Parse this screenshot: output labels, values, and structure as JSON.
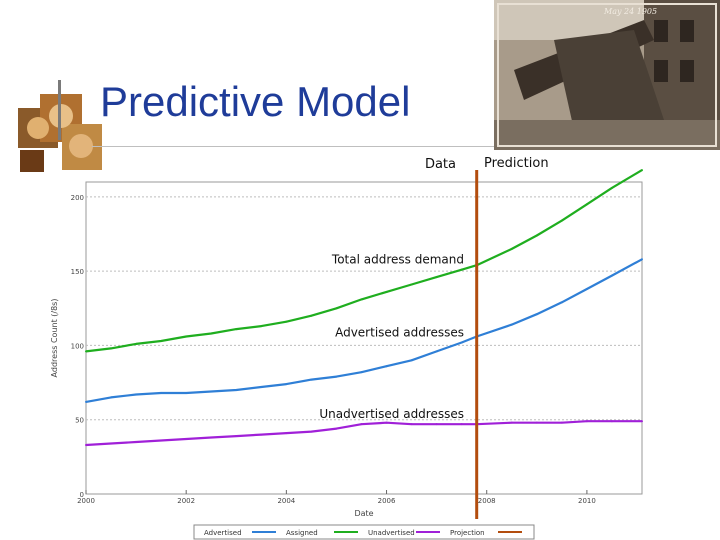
{
  "slide": {
    "title": "Predictive Model",
    "photo_caption": "May 24 1905"
  },
  "colors": {
    "title": "#1f3c99",
    "advertised": "#2f7fd6",
    "assigned": "#1fae1f",
    "unadvertised": "#a020d8",
    "projection": "#b34d0e"
  },
  "chart_data": {
    "type": "line",
    "xlabel": "Date",
    "ylabel": "Address Count (/8s)",
    "xlim": [
      2000,
      2011.1
    ],
    "ylim": [
      0,
      210
    ],
    "xticks": [
      {
        "value": 2000,
        "label": "2000"
      },
      {
        "value": 2002,
        "label": "2002"
      },
      {
        "value": 2004,
        "label": "2004"
      },
      {
        "value": 2006,
        "label": "2006"
      },
      {
        "value": 2008,
        "label": "2008"
      },
      {
        "value": 2010,
        "label": "2010"
      }
    ],
    "yticks": [
      {
        "value": 0,
        "label": "0"
      },
      {
        "value": 50,
        "label": "50"
      },
      {
        "value": 100,
        "label": "100"
      },
      {
        "value": 150,
        "label": "150"
      },
      {
        "value": 200,
        "label": "200"
      }
    ],
    "grid": true,
    "divider": {
      "x": 2007.8,
      "left_label": "Data",
      "right_label": "Prediction"
    },
    "series": [
      {
        "name": "Advertised",
        "color": "#2f7fd6",
        "x": [
          2000,
          2000.5,
          2001,
          2001.5,
          2002,
          2002.5,
          2003,
          2003.5,
          2004,
          2004.5,
          2005,
          2005.5,
          2006,
          2006.5,
          2007,
          2007.5,
          2007.8,
          2008.5,
          2009,
          2009.5,
          2010,
          2010.5,
          2011.1
        ],
        "y": [
          62,
          65,
          67,
          68,
          68,
          69,
          70,
          72,
          74,
          77,
          79,
          82,
          86,
          90,
          96,
          102,
          106,
          114,
          121,
          129,
          138,
          147,
          158
        ]
      },
      {
        "name": "Assigned",
        "color": "#1fae1f",
        "x": [
          2000,
          2000.5,
          2001,
          2001.5,
          2002,
          2002.5,
          2003,
          2003.5,
          2004,
          2004.5,
          2005,
          2005.5,
          2006,
          2006.5,
          2007,
          2007.5,
          2007.8,
          2008.5,
          2009,
          2009.5,
          2010,
          2010.5,
          2011.1
        ],
        "y": [
          96,
          98,
          101,
          103,
          106,
          108,
          111,
          113,
          116,
          120,
          125,
          131,
          136,
          141,
          146,
          151,
          154,
          165,
          174,
          184,
          195,
          206,
          218
        ]
      },
      {
        "name": "Unadvertised",
        "color": "#a020d8",
        "x": [
          2000,
          2000.5,
          2001,
          2001.5,
          2002,
          2002.5,
          2003,
          2003.5,
          2004,
          2004.5,
          2005,
          2005.5,
          2006,
          2006.5,
          2007,
          2007.5,
          2007.8,
          2008.5,
          2009,
          2009.5,
          2010,
          2010.5,
          2011.1
        ],
        "y": [
          33,
          34,
          35,
          36,
          37,
          38,
          39,
          40,
          41,
          42,
          44,
          47,
          48,
          47,
          47,
          47,
          47,
          48,
          48,
          48,
          49,
          49,
          49
        ]
      }
    ],
    "legend": {
      "placement": "bottom",
      "entries": [
        "Advertised",
        "Assigned",
        "Unadvertised",
        "Projection"
      ]
    },
    "annotations": [
      {
        "text": "Total address demand",
        "series": "Assigned"
      },
      {
        "text": "Advertised addresses",
        "series": "Advertised"
      },
      {
        "text": "Unadvertised addresses",
        "series": "Unadvertised"
      }
    ]
  }
}
